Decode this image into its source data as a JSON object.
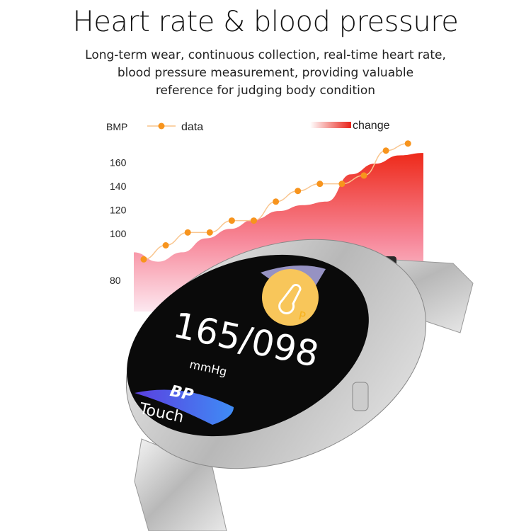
{
  "header": {
    "title": "Heart rate & blood pressure",
    "subtitle_lines": [
      "Long-term wear, continuous collection, real-time heart rate,",
      "blood pressure measurement, providing valuable",
      "reference for judging body condition"
    ]
  },
  "chart_data": {
    "type": "line",
    "ylabel": "BMP",
    "y_ticks": [
      80,
      100,
      120,
      140,
      160
    ],
    "ylim": [
      80,
      180
    ],
    "grid": false,
    "legend_placement": "top",
    "series": [
      {
        "name": "data",
        "kind": "line-with-markers",
        "color": "#f7941d",
        "values": [
          89,
          95,
          101,
          101,
          111,
          111,
          127,
          136,
          142,
          142,
          149,
          170,
          176
        ]
      },
      {
        "name": "change",
        "kind": "area",
        "color": "#ee3124",
        "values": [
          92,
          88,
          92,
          98,
          104,
          112,
          119,
          124,
          127,
          150,
          159,
          166,
          168
        ]
      }
    ]
  },
  "watch_screen": {
    "reading": "165/098",
    "unit": "mmHg",
    "bp_label": "BP",
    "touch_label": "Touch",
    "partial_letter": "P",
    "icon": "thermometer-icon"
  },
  "colors": {
    "accent_orange": "#f7941d",
    "area_red": "#ee3124",
    "area_pink": "#fbd3e0",
    "bp_blue": "#4a6cf0"
  }
}
